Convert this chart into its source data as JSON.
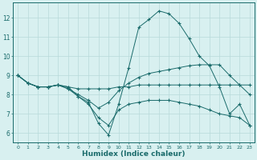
{
  "x": [
    0,
    1,
    2,
    3,
    4,
    5,
    6,
    7,
    8,
    9,
    10,
    11,
    12,
    13,
    14,
    15,
    16,
    17,
    18,
    19,
    20,
    21,
    22,
    23
  ],
  "line_peak": [
    9.0,
    8.6,
    8.4,
    8.4,
    8.5,
    8.4,
    7.9,
    7.6,
    6.5,
    5.9,
    7.5,
    9.4,
    11.5,
    11.9,
    12.35,
    12.2,
    11.7,
    10.9,
    10.0,
    9.5,
    8.4,
    7.0,
    7.5,
    6.4
  ],
  "line_flat": [
    9.0,
    8.6,
    8.4,
    8.4,
    8.5,
    8.4,
    8.3,
    8.3,
    8.3,
    8.3,
    8.4,
    8.4,
    8.5,
    8.5,
    8.5,
    8.5,
    8.5,
    8.5,
    8.5,
    8.5,
    8.5,
    8.5,
    8.5,
    8.5
  ],
  "line_diag1": [
    9.0,
    8.6,
    8.4,
    8.4,
    8.5,
    8.3,
    8.0,
    7.7,
    7.3,
    7.6,
    8.2,
    8.6,
    8.9,
    9.1,
    9.2,
    9.3,
    9.4,
    9.5,
    9.55,
    9.55,
    9.55,
    9.0,
    8.5,
    8.0
  ],
  "line_diag2": [
    9.0,
    8.6,
    8.4,
    8.4,
    8.5,
    8.3,
    7.9,
    7.5,
    6.8,
    6.4,
    7.2,
    7.5,
    7.6,
    7.7,
    7.7,
    7.7,
    7.6,
    7.5,
    7.4,
    7.2,
    7.0,
    6.9,
    6.8,
    6.4
  ],
  "color": "#1a6b6b",
  "bg_color": "#d8f0f0",
  "grid_color": "#b8dada",
  "xlabel": "Humidex (Indice chaleur)",
  "ylim": [
    5.5,
    12.8
  ],
  "xlim": [
    -0.5,
    23.5
  ],
  "yticks": [
    6,
    7,
    8,
    9,
    10,
    11,
    12
  ],
  "xticks": [
    0,
    1,
    2,
    3,
    4,
    5,
    6,
    7,
    8,
    9,
    10,
    11,
    12,
    13,
    14,
    15,
    16,
    17,
    18,
    19,
    20,
    21,
    22,
    23
  ]
}
